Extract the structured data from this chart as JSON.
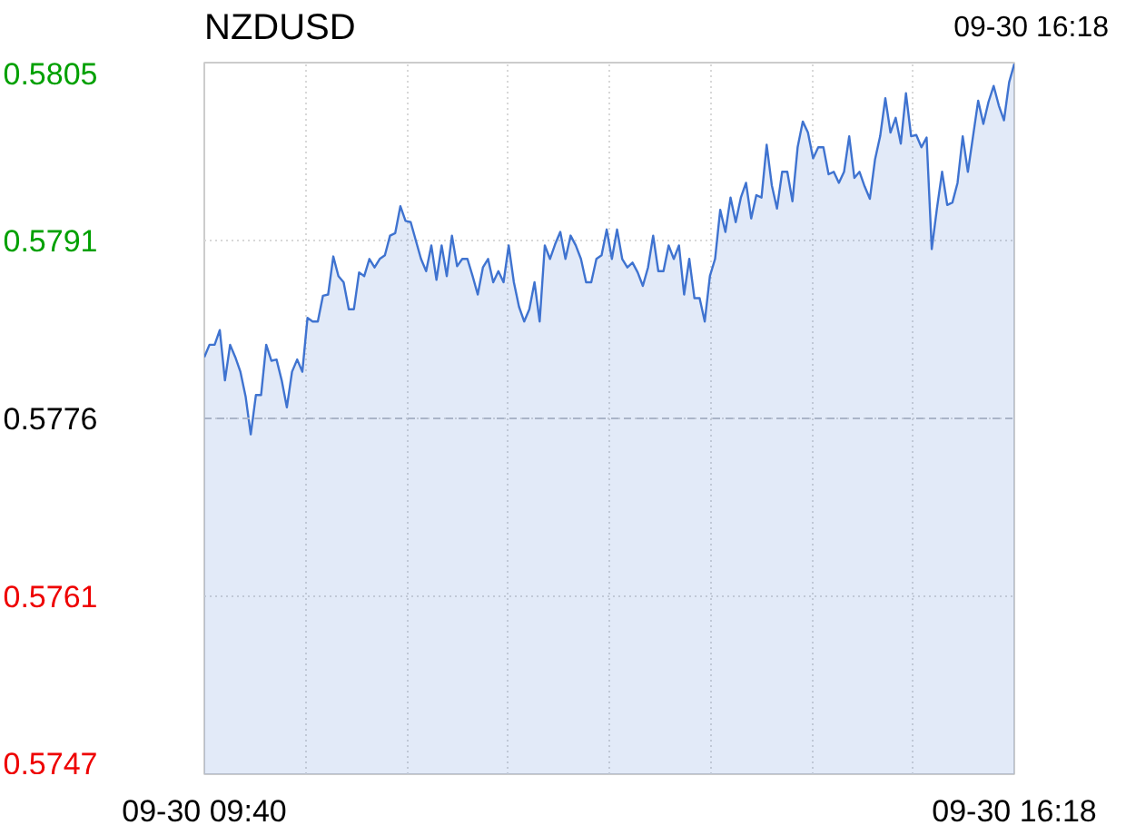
{
  "chart_data": {
    "type": "area",
    "title": "NZDUSD",
    "annotations": [
      "09-30 16:18"
    ],
    "ylim": [
      0.5747,
      0.5805
    ],
    "categories": [
      "09-30 09:40",
      null,
      null,
      null,
      null,
      null,
      null,
      null,
      null,
      null,
      null,
      null,
      null,
      null,
      null,
      null,
      null,
      null,
      null,
      null,
      null,
      null,
      null,
      null,
      null,
      null,
      null,
      null,
      null,
      null,
      null,
      null,
      null,
      null,
      null,
      null,
      null,
      null,
      null,
      null,
      null,
      null,
      null,
      null,
      null,
      null,
      null,
      null,
      null,
      null,
      null,
      null,
      null,
      null,
      null,
      null,
      null,
      null,
      null,
      null,
      null,
      null,
      null,
      null,
      null,
      null,
      null,
      null,
      null,
      null,
      null,
      null,
      null,
      null,
      null,
      null,
      null,
      null,
      null,
      null,
      null,
      null,
      null,
      null,
      null,
      null,
      null,
      null,
      null,
      null,
      null,
      null,
      null,
      null,
      null,
      null,
      null,
      null,
      null,
      null,
      null,
      null,
      null,
      null,
      null,
      null,
      null,
      null,
      null,
      null,
      null,
      null,
      null,
      null,
      null,
      null,
      null,
      null,
      null,
      null,
      null,
      null,
      null,
      null,
      null,
      null,
      null,
      null,
      null,
      null,
      null,
      null,
      null,
      null,
      null,
      null,
      null,
      null,
      null,
      null,
      null,
      null,
      null,
      null,
      null,
      null,
      null,
      null,
      null,
      null,
      null,
      null,
      null,
      null,
      null,
      null,
      null,
      "09-30 16:18"
    ],
    "yticks": [
      {
        "value": 0.5747,
        "label": "0.5747"
      },
      {
        "value": 0.57615,
        "label": "0.5761"
      },
      {
        "value": 0.5776,
        "label": "0.5776"
      },
      {
        "value": 0.57905,
        "label": "0.5791"
      },
      {
        "value": 0.5805,
        "label": "0.5805"
      }
    ],
    "grid": true,
    "marker": "none",
    "line_style": "solid",
    "ref_lines": [
      {
        "axis": "y",
        "value": 0.5776,
        "label": null,
        "color": "#aab4c8",
        "line_style": "dashed"
      }
    ],
    "series": [
      {
        "color": "#3f73d0",
        "values": [
          0.5781,
          0.5782,
          0.5782,
          0.57832,
          0.57791,
          0.5782,
          0.5781,
          0.57798,
          0.57778,
          0.57747,
          0.57779,
          0.57779,
          0.5782,
          0.57807,
          0.57808,
          0.57791,
          0.57769,
          0.57798,
          0.57808,
          0.57798,
          0.57842,
          0.57839,
          0.57839,
          0.5786,
          0.57861,
          0.57892,
          0.57876,
          0.57871,
          0.57849,
          0.57849,
          0.57879,
          0.57876,
          0.5789,
          0.57883,
          0.5789,
          0.57893,
          0.57909,
          0.57911,
          0.57933,
          0.57921,
          0.5792,
          0.57905,
          0.5789,
          0.5788,
          0.57901,
          0.57873,
          0.57901,
          0.57876,
          0.57909,
          0.57884,
          0.5789,
          0.5789,
          0.57876,
          0.57861,
          0.57883,
          0.5789,
          0.57871,
          0.5788,
          0.57871,
          0.57901,
          0.57871,
          0.57851,
          0.57839,
          0.57849,
          0.57871,
          0.57839,
          0.57901,
          0.5789,
          0.57902,
          0.57912,
          0.5789,
          0.57909,
          0.57901,
          0.5789,
          0.57871,
          0.57871,
          0.5789,
          0.57893,
          0.57914,
          0.5789,
          0.57914,
          0.5789,
          0.57883,
          0.57887,
          0.57879,
          0.57868,
          0.57883,
          0.57909,
          0.5788,
          0.5788,
          0.57901,
          0.5789,
          0.57901,
          0.57861,
          0.5789,
          0.57858,
          0.57858,
          0.57839,
          0.57876,
          0.5789,
          0.5793,
          0.57912,
          0.5794,
          0.5792,
          0.5794,
          0.57952,
          0.57923,
          0.57942,
          0.5794,
          0.57983,
          0.5795,
          0.57931,
          0.57961,
          0.57961,
          0.57937,
          0.57981,
          0.58002,
          0.57993,
          0.57972,
          0.57981,
          0.57981,
          0.57959,
          0.57961,
          0.57952,
          0.57961,
          0.5799,
          0.57956,
          0.57961,
          0.57949,
          0.57939,
          0.57971,
          0.5799,
          0.58021,
          0.57993,
          0.58005,
          0.57984,
          0.58025,
          0.5799,
          0.57991,
          0.57981,
          0.57989,
          0.57898,
          0.57931,
          0.57961,
          0.57934,
          0.57936,
          0.57952,
          0.5799,
          0.57961,
          0.5799,
          0.58019,
          0.58,
          0.58018,
          0.58031,
          0.58015,
          0.58003,
          0.58034,
          0.58049
        ]
      }
    ]
  }
}
